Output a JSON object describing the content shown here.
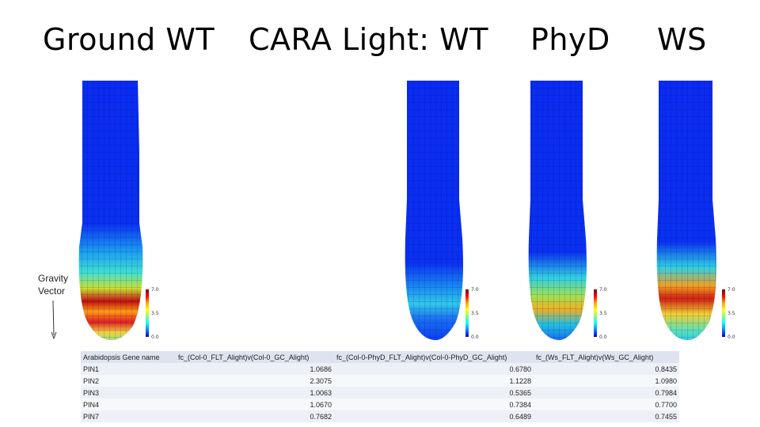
{
  "titles": {
    "ground": "Ground WT",
    "cara": "CARA Light: WT",
    "phyd": "PhyD",
    "ws": "WS"
  },
  "gravity_label": [
    "Gravity",
    "Vector"
  ],
  "colorbar": {
    "max": "7.0",
    "mid": "3.5",
    "min": "0.0"
  },
  "colors": {
    "low": "#0a2cf0",
    "mid": "#2fd9e0",
    "high": "#d01010"
  },
  "table": {
    "headers": [
      "Arabidopsis Gene name",
      "fc_(Col-0_FLT_Alight)v(Col-0_GC_Alight)",
      "fc_(Col-0-PhyD_FLT_Alight)v(Col-0-PhyD_GC_Alight)",
      "fc_(Ws_FLT_Alight)v(Ws_GC_Alight)"
    ],
    "rows": [
      [
        "PIN1",
        "1.0686",
        "0.6780",
        "0.8435"
      ],
      [
        "PIN2",
        "2.3075",
        "1.1228",
        "1.0980"
      ],
      [
        "PIN3",
        "1.0063",
        "0.5365",
        "0.7984"
      ],
      [
        "PIN4",
        "1.0670",
        "0.7384",
        "0.7700"
      ],
      [
        "PIN7",
        "0.7682",
        "0.6489",
        "0.7455"
      ]
    ]
  }
}
